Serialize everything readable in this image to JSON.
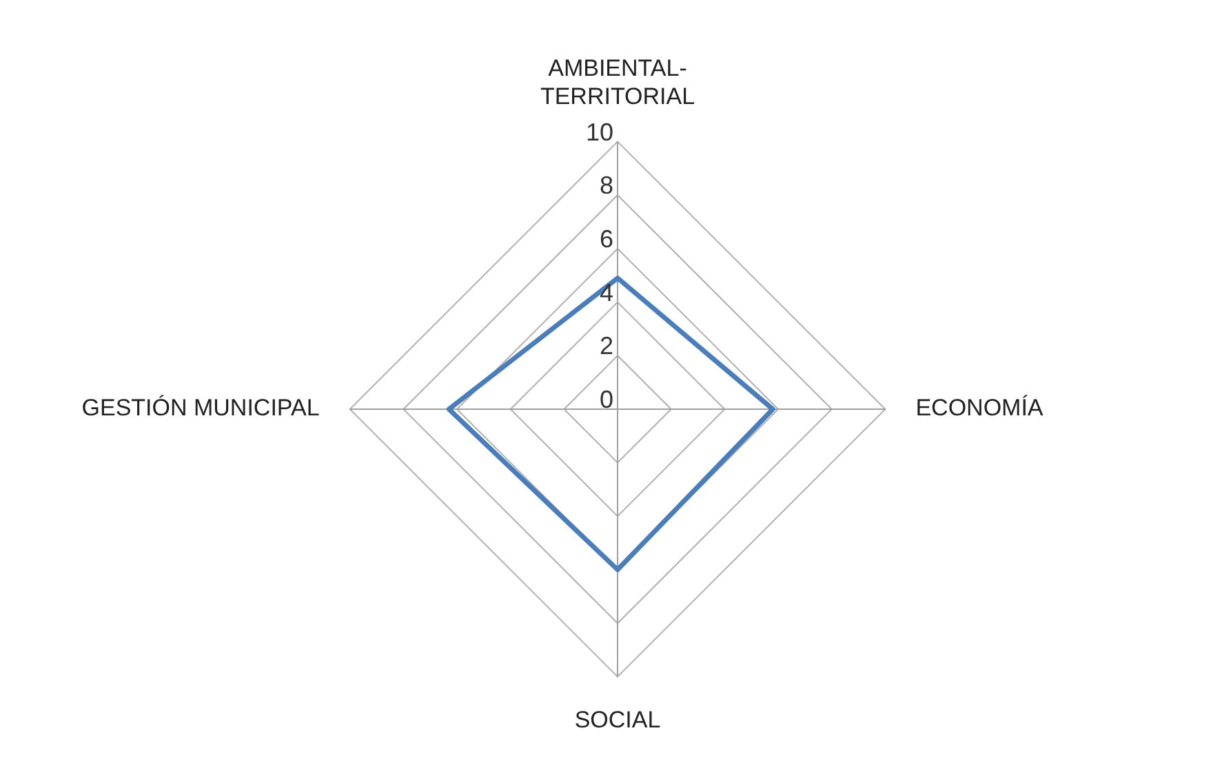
{
  "chart_data": {
    "type": "radar",
    "categories": [
      "AMBIENTAL-TERRITORIAL",
      "ECONOMÍA",
      "SOCIAL",
      "GESTIÓN MUNICIPAL"
    ],
    "series": [
      {
        "color": "#4a7ebb",
        "values": [
          4.9,
          5.8,
          6.0,
          6.3
        ]
      }
    ],
    "ylim": [
      0,
      10
    ],
    "yticks": [
      0,
      2,
      4,
      6,
      8,
      10
    ],
    "grid": true,
    "legend": false,
    "marker": "none",
    "line_style": "solid"
  }
}
